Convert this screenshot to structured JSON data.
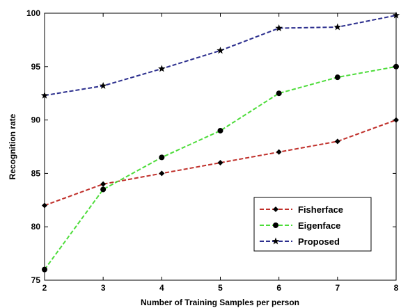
{
  "chart_data": {
    "type": "line",
    "title": "",
    "xlabel": "Number of Training Samples per person",
    "ylabel": "Recognition rate",
    "x": [
      2,
      3,
      4,
      5,
      6,
      7,
      8
    ],
    "xlim": [
      2,
      8
    ],
    "ylim": [
      75,
      100
    ],
    "xticks": [
      "2",
      "3",
      "4",
      "5",
      "6",
      "7",
      "8"
    ],
    "yticks": [
      "75",
      "80",
      "85",
      "90",
      "95",
      "100"
    ],
    "grid": false,
    "legend_position": "lower-right",
    "series": [
      {
        "name": "Fisherface",
        "values": [
          82,
          84,
          85,
          86,
          87,
          88,
          90
        ],
        "color": "#c0302b",
        "marker": "diamond",
        "line_style": "dashed"
      },
      {
        "name": "Eigenface",
        "values": [
          76,
          83.5,
          86.5,
          89,
          92.5,
          94,
          95
        ],
        "color": "#4ddc3a",
        "marker": "circle",
        "line_style": "dashed"
      },
      {
        "name": "Proposed",
        "values": [
          92.3,
          93.2,
          94.8,
          96.5,
          98.6,
          98.7,
          99.8
        ],
        "color": "#2c2f8e",
        "marker": "star",
        "line_style": "dashed"
      }
    ]
  }
}
